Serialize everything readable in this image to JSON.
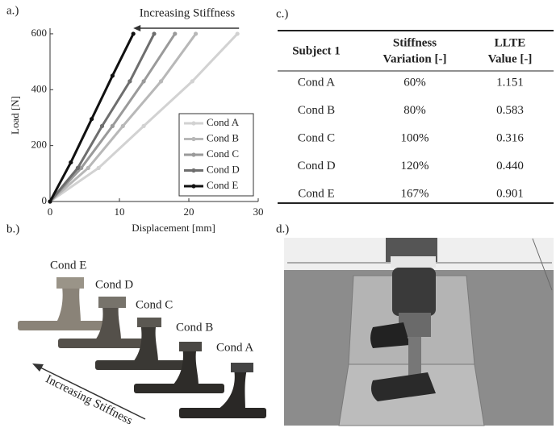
{
  "panel_labels": [
    "a.)",
    "b.)",
    "c.)",
    "d.)"
  ],
  "chart_data": {
    "type": "line",
    "annotation": "Increasing Stiffness",
    "x_label": "Displacement [mm]",
    "y_label": "Load [N]",
    "xlim": [
      0,
      30
    ],
    "xticks": [
      0,
      10,
      20,
      30
    ],
    "ylim": [
      0,
      620
    ],
    "yticks": [
      0,
      200,
      400,
      600
    ],
    "legend": "lower right",
    "series": [
      {
        "name": "Cond A",
        "color": "#d2d2d2",
        "x": [
          0,
          7,
          13.5,
          20.5,
          27
        ],
        "values": [
          0,
          120,
          270,
          430,
          600
        ]
      },
      {
        "name": "Cond B",
        "color": "#b8b8b8",
        "x": [
          0,
          5.5,
          10.5,
          16,
          21
        ],
        "values": [
          0,
          120,
          270,
          430,
          600
        ]
      },
      {
        "name": "Cond C",
        "color": "#9a9a9a",
        "x": [
          0,
          4.5,
          9,
          13.5,
          18
        ],
        "values": [
          0,
          120,
          270,
          430,
          600
        ]
      },
      {
        "name": "Cond D",
        "color": "#6e6e6e",
        "x": [
          0,
          4,
          7.5,
          11.5,
          15
        ],
        "values": [
          0,
          120,
          270,
          430,
          600
        ]
      },
      {
        "name": "Cond E",
        "color": "#111111",
        "x": [
          0,
          3,
          6,
          9,
          12
        ],
        "values": [
          0,
          140,
          295,
          450,
          600
        ]
      }
    ]
  },
  "photo_b": {
    "labels": [
      "Cond E",
      "Cond D",
      "Cond C",
      "Cond B",
      "Cond A"
    ],
    "arrow_label": "Increasing Stiffness"
  },
  "table": {
    "header": [
      [
        "Subject 1"
      ],
      [
        "Stiffness",
        "Variation [-]"
      ],
      [
        "LLTE",
        "Value [-]"
      ]
    ],
    "rows": [
      [
        "Cond A",
        "60%",
        "1.151"
      ],
      [
        "Cond B",
        "80%",
        "0.583"
      ],
      [
        "Cond C",
        "100%",
        "0.316"
      ],
      [
        "Cond D",
        "120%",
        "0.440"
      ],
      [
        "Cond E",
        "167%",
        "0.901"
      ]
    ]
  }
}
